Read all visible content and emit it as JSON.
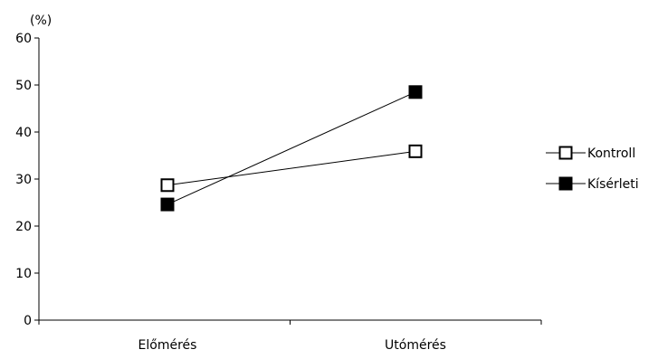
{
  "chart_data": {
    "type": "line",
    "title": "",
    "xlabel": "",
    "ylabel": "(%)",
    "categories": [
      "Előmérés",
      "Utómérés"
    ],
    "ylim": [
      0,
      60
    ],
    "yticks": [
      0,
      10,
      20,
      30,
      40,
      50,
      60
    ],
    "grid": false,
    "legend_position": "right",
    "series": [
      {
        "name": "Kontroll",
        "values": [
          28.7,
          35.9
        ],
        "marker": "open-square",
        "color": "#000000"
      },
      {
        "name": "Kísérleti",
        "values": [
          24.6,
          48.5
        ],
        "marker": "filled-square",
        "color": "#000000"
      }
    ]
  }
}
